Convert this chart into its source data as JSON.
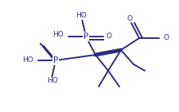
{
  "bg_color": "#ffffff",
  "lc": "#2c2c7a",
  "lw": 1.4,
  "figsize": [
    2.25,
    1.41
  ],
  "dpi": 100,
  "xlim": [
    0,
    225
  ],
  "ylim": [
    0,
    141
  ]
}
